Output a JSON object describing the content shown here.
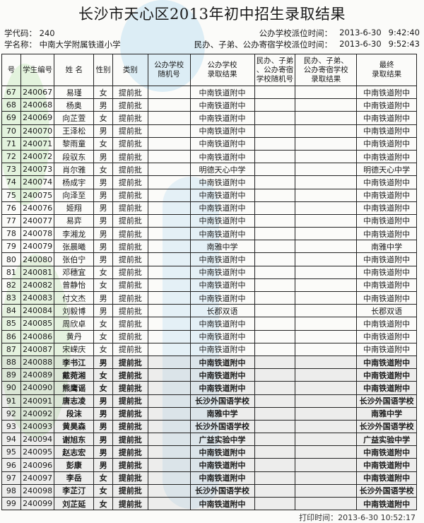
{
  "title": "长沙市天心区2013年初中招生录取结果",
  "school_code_label": "学代码：",
  "school_code": "240",
  "school_name_label": "学名称：",
  "school_name": "中南大学附属铁道小学",
  "public_time_label": "公办学校派位时间：",
  "public_date": "2013-6-30",
  "public_time": "9:42:40",
  "private_time_label": "民办、子弟、公办寄宿学校派位时间：",
  "private_date": "2013-6-30",
  "private_time": "9:52:43",
  "columns": [
    "号",
    "学生编号",
    "姓 名",
    "性别",
    "类别",
    "公办学校\n随机号",
    "公办学校\n录取结果",
    "民办、子弟\n、公办寄宿\n学校随机号",
    "民办、子弟、\n公办寄宿学校\n录取结果",
    "最终\n录取结果"
  ],
  "rows": [
    [
      "67",
      "240067",
      "易瑾",
      "女",
      "提前批",
      "",
      "中南铁道附中",
      "",
      "",
      "中南铁道附中"
    ],
    [
      "68",
      "240068",
      "杨奥",
      "男",
      "提前批",
      "",
      "中南铁道附中",
      "",
      "",
      "中南铁道附中"
    ],
    [
      "69",
      "240069",
      "向芷萱",
      "女",
      "提前批",
      "",
      "中南铁道附中",
      "",
      "",
      "中南铁道附中"
    ],
    [
      "70",
      "240070",
      "王泽松",
      "男",
      "提前批",
      "",
      "中南铁道附中",
      "",
      "",
      "中南铁道附中"
    ],
    [
      "71",
      "240071",
      "黎雨童",
      "女",
      "提前批",
      "",
      "中南铁道附中",
      "",
      "",
      "中南铁道附中"
    ],
    [
      "72",
      "240072",
      "段驭东",
      "男",
      "提前批",
      "",
      "中南铁道附中",
      "",
      "",
      "中南铁道附中"
    ],
    [
      "73",
      "240073",
      "肖尔雅",
      "女",
      "提前批",
      "",
      "明德天心中学",
      "",
      "",
      "明德天心中学"
    ],
    [
      "74",
      "240074",
      "杨成宇",
      "男",
      "提前批",
      "",
      "中南铁道附中",
      "",
      "",
      "中南铁道附中"
    ],
    [
      "75",
      "240075",
      "向泽至",
      "男",
      "提前批",
      "",
      "中南铁道附中",
      "",
      "",
      "中南铁道附中"
    ],
    [
      "76",
      "240076",
      "姬翔",
      "男",
      "提前批",
      "",
      "中南铁道附中",
      "",
      "",
      "中南铁道附中"
    ],
    [
      "77",
      "240077",
      "易弈",
      "男",
      "提前批",
      "",
      "中南铁道附中",
      "",
      "",
      "中南铁道附中"
    ],
    [
      "78",
      "240078",
      "李湘龙",
      "男",
      "提前批",
      "",
      "中南铁道附中",
      "",
      "",
      "中南铁道附中"
    ],
    [
      "79",
      "240079",
      "张晨曦",
      "男",
      "提前批",
      "",
      "南雅中学",
      "",
      "",
      "南雅中学"
    ],
    [
      "80",
      "240080",
      "张伯宁",
      "男",
      "提前批",
      "",
      "中南铁道附中",
      "",
      "",
      "中南铁道附中"
    ],
    [
      "81",
      "240081",
      "邓穗宜",
      "女",
      "提前批",
      "",
      "中南铁道附中",
      "",
      "",
      "中南铁道附中"
    ],
    [
      "82",
      "240082",
      "曾静怡",
      "女",
      "提前批",
      "",
      "中南铁道附中",
      "",
      "",
      "中南铁道附中"
    ],
    [
      "83",
      "240083",
      "付文杰",
      "男",
      "提前批",
      "",
      "中南铁道附中",
      "",
      "",
      "中南铁道附中"
    ],
    [
      "84",
      "240084",
      "刘毅博",
      "男",
      "提前批",
      "",
      "长郡双语",
      "",
      "",
      "长郡双语"
    ],
    [
      "85",
      "240085",
      "周欣卓",
      "女",
      "提前批",
      "",
      "中南铁道附中",
      "",
      "",
      "中南铁道附中"
    ],
    [
      "86",
      "240086",
      "黄丹",
      "女",
      "提前批",
      "",
      "中南铁道附中",
      "",
      "",
      "中南铁道附中"
    ],
    [
      "87",
      "240087",
      "宋嵘庆",
      "女",
      "提前批",
      "",
      "中南铁道附中",
      "",
      "",
      "中南铁道附中"
    ],
    [
      "88",
      "240088",
      "李书江",
      "男",
      "提前批",
      "",
      "中南铁道附中",
      "",
      "",
      "中南铁道附中"
    ],
    [
      "89",
      "240089",
      "戴菀湘",
      "女",
      "提前批",
      "",
      "中南铁道附中",
      "",
      "",
      "中南铁道附中"
    ],
    [
      "90",
      "240090",
      "熊鹰谣",
      "女",
      "提前批",
      "",
      "中南铁道附中",
      "",
      "",
      "中南铁道附中"
    ],
    [
      "91",
      "240091",
      "唐志凌",
      "男",
      "提前批",
      "",
      "长沙外国语学校",
      "",
      "",
      "长沙外国语学校"
    ],
    [
      "92",
      "240092",
      "段沫",
      "男",
      "提前批",
      "",
      "南雅中学",
      "",
      "",
      "南雅中学"
    ],
    [
      "93",
      "240093",
      "黄昊森",
      "男",
      "提前批",
      "",
      "长沙外国语学校",
      "",
      "",
      "长沙外国语学校"
    ],
    [
      "94",
      "240094",
      "谢旭东",
      "男",
      "提前批",
      "",
      "广益实验中学",
      "",
      "",
      "广益实验中学"
    ],
    [
      "95",
      "240095",
      "赵志宏",
      "男",
      "提前批",
      "",
      "中南铁道附中",
      "",
      "",
      "中南铁道附中"
    ],
    [
      "96",
      "240096",
      "彭康",
      "男",
      "提前批",
      "",
      "中南铁道附中",
      "",
      "",
      "中南铁道附中"
    ],
    [
      "97",
      "240097",
      "李岳",
      "女",
      "提前批",
      "",
      "中南铁道附中",
      "",
      "",
      "中南铁道附中"
    ],
    [
      "98",
      "240098",
      "李芷汀",
      "女",
      "提前批",
      "",
      "长沙外国语学校",
      "",
      "",
      "长沙外国语学校"
    ],
    [
      "99",
      "240099",
      "刘芷延",
      "女",
      "提前批",
      "",
      "中南铁道附中",
      "",
      "",
      "中南铁道附中"
    ]
  ],
  "footer": "打印时间：2013-6-30 10:52:17",
  "colors": {
    "watermark_green": "#8fd47a",
    "watermark_blue": "#7ec3ea",
    "watermark_gray": "#d8d8d8"
  }
}
